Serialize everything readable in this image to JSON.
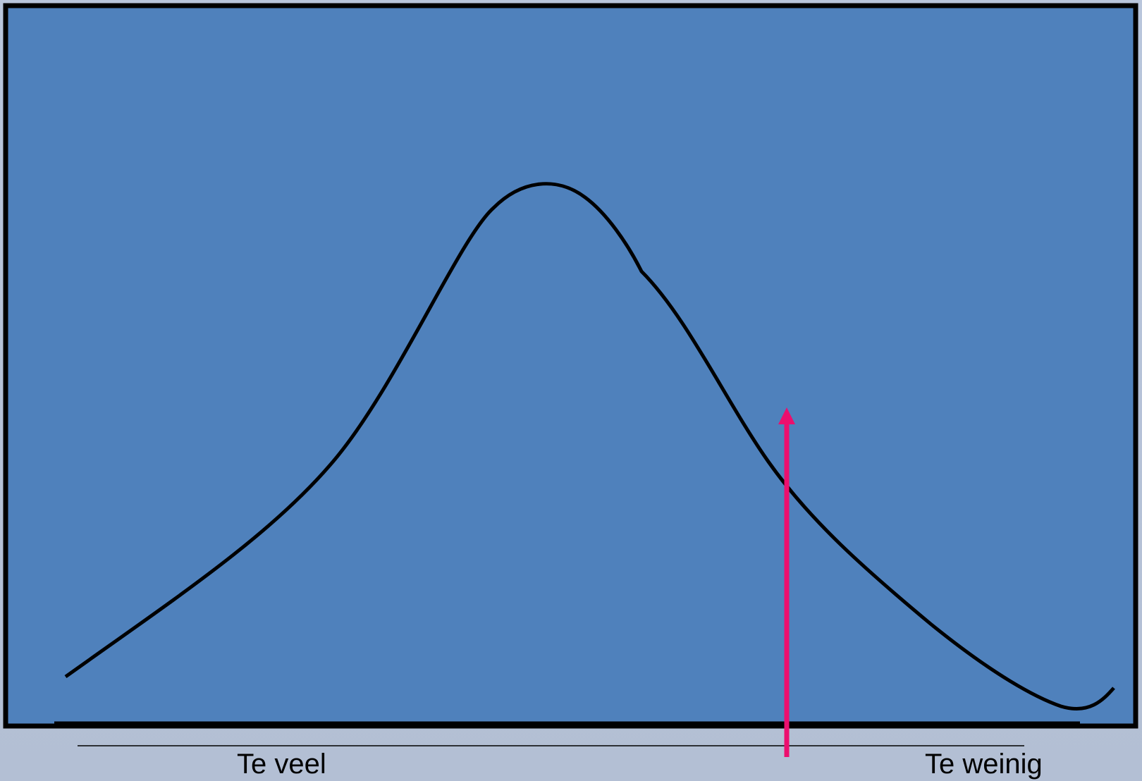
{
  "labels": {
    "left": "Te veel",
    "right": "Te weinig"
  },
  "colors": {
    "panel_fill": "#4f81bc",
    "frame": "#000000",
    "curve": "#000000",
    "marker_arrow": "#ec0f6e",
    "background": "#b7c3d8"
  }
}
